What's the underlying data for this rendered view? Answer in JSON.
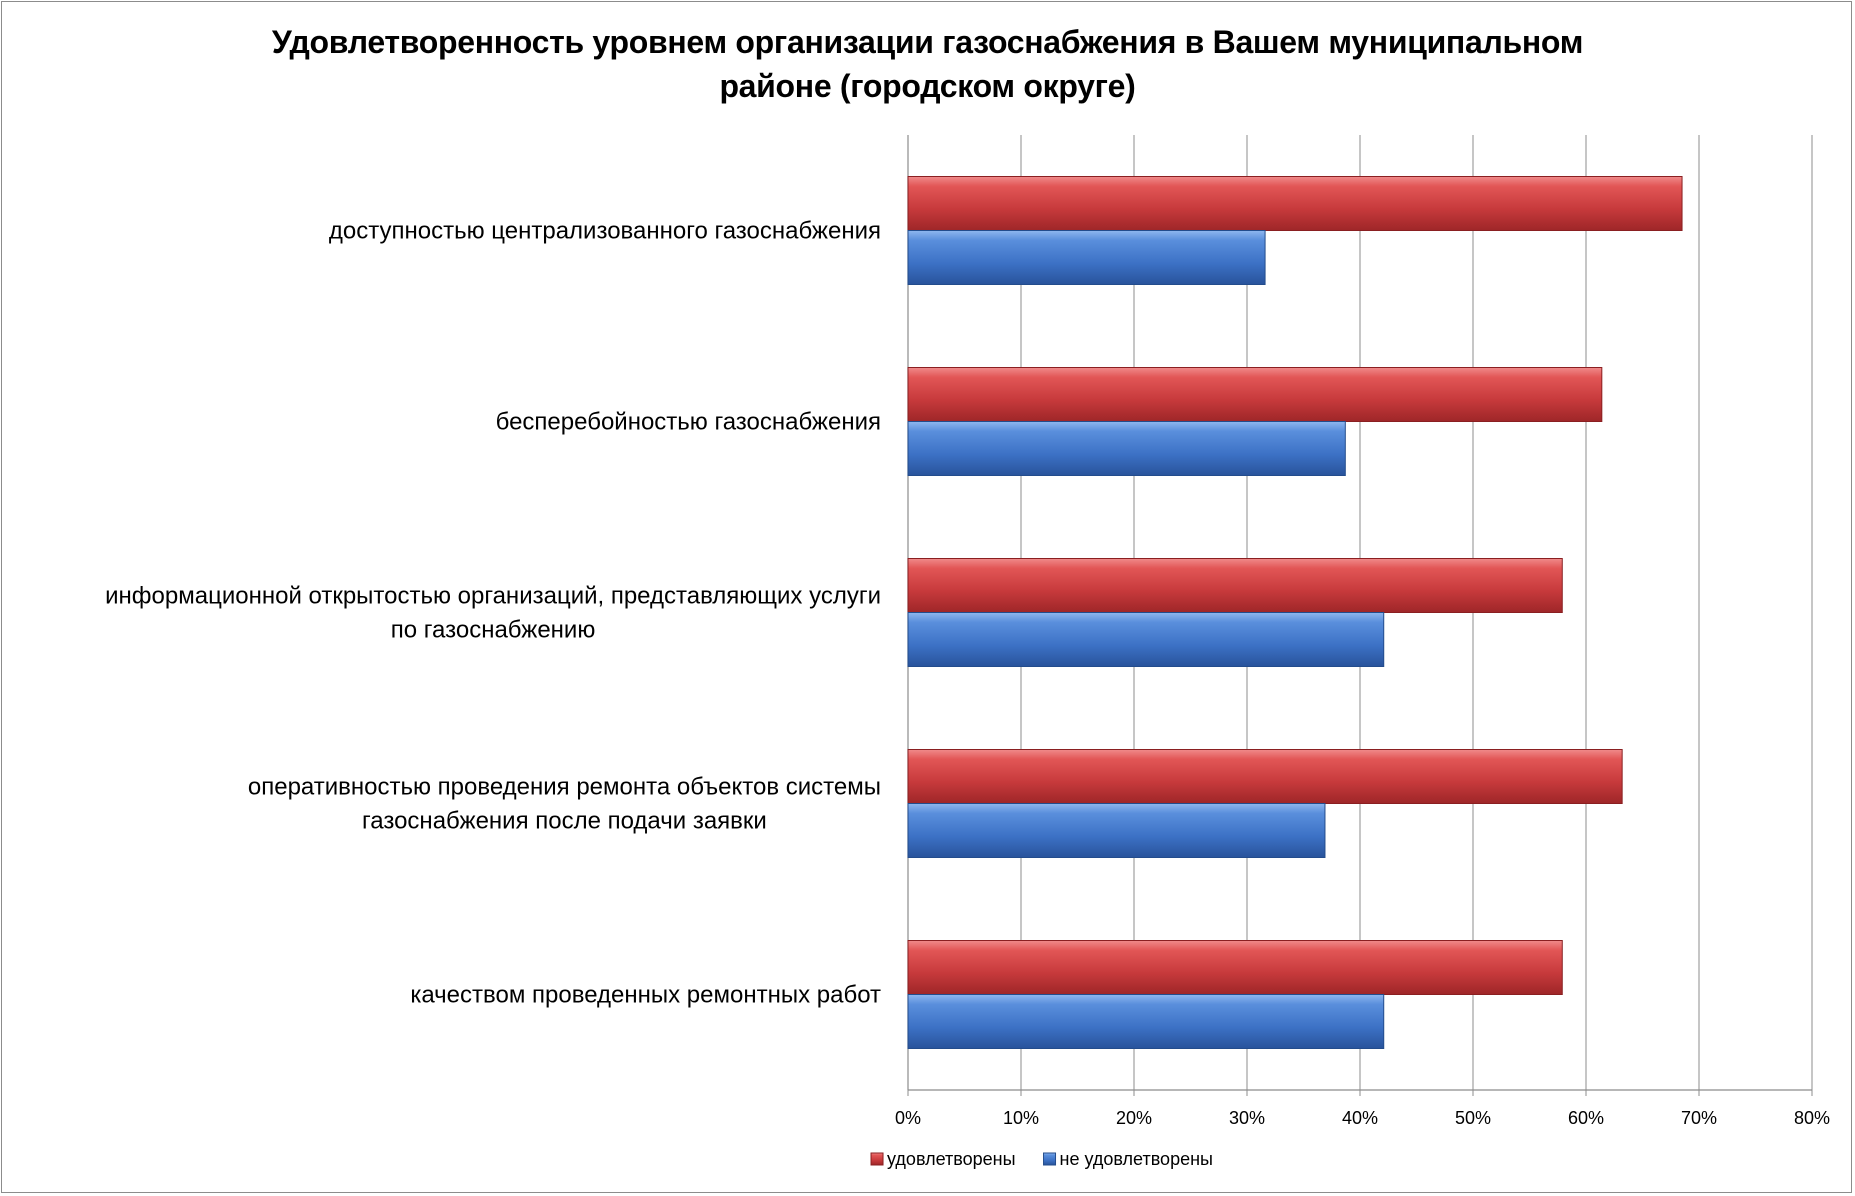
{
  "chart_data": {
    "type": "bar",
    "orientation": "horizontal",
    "title_lines": [
      "Удовлетворенность уровнем организации газоснабжения в Вашем муниципальном",
      "районе (городском округе)"
    ],
    "categories": [
      [
        "доступностью централизованного газоснабжения"
      ],
      [
        "бесперебойностью  газоснабжения"
      ],
      [
        "информационной открытостью организаций, представляющих услуги",
        "по газоснабжению"
      ],
      [
        "оперативностью проведения ремонта объектов системы",
        "газоснабжения после подачи заявки"
      ],
      [
        "качеством проведенных ремонтных работ"
      ]
    ],
    "series": [
      {
        "name": "удовлетворены",
        "color": "#c0393b",
        "values": [
          68.5,
          61.4,
          57.9,
          63.2,
          57.9
        ]
      },
      {
        "name": "не удовлетворены",
        "color": "#3a6fc2",
        "values": [
          31.6,
          38.7,
          42.1,
          36.9,
          42.1
        ]
      }
    ],
    "xlim": [
      0,
      80
    ],
    "x_ticks": [
      "0%",
      "10%",
      "20%",
      "30%",
      "40%",
      "50%",
      "60%",
      "70%",
      "80%"
    ],
    "x_tick_values": [
      0,
      10,
      20,
      30,
      40,
      50,
      60,
      70,
      80
    ],
    "grid": true,
    "legend_position": "bottom"
  }
}
